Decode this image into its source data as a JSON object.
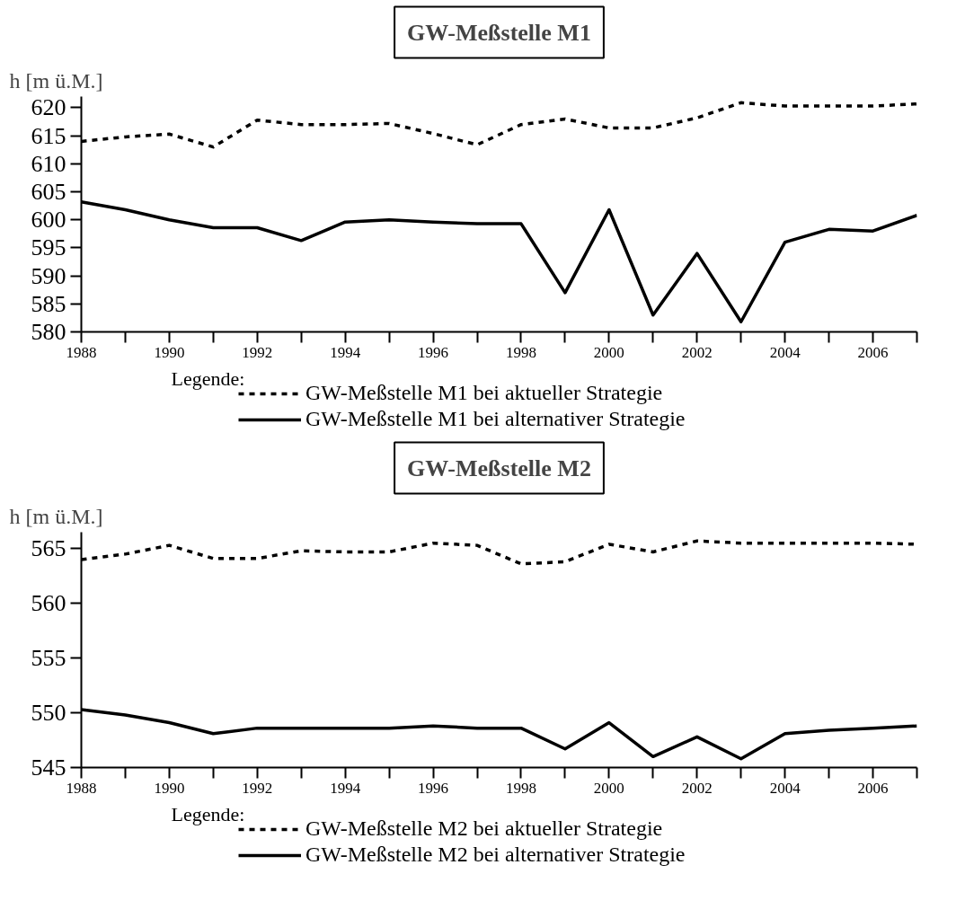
{
  "chart_data": [
    {
      "type": "line",
      "title": "GW-Meßstelle M1",
      "ylabel": "h [m ü.M.]",
      "legend_title": "Legende:",
      "legend": "bottom",
      "grid": false,
      "marker": "none",
      "x": [
        1988,
        1989,
        1990,
        1991,
        1992,
        1993,
        1994,
        1995,
        1996,
        1997,
        1998,
        1999,
        2000,
        2001,
        2002,
        2003,
        2004,
        2005,
        2006,
        2007
      ],
      "xlim": [
        1988,
        2007
      ],
      "xticks": [
        1988,
        {
          "value": 1989,
          "label": null
        },
        1990,
        {
          "value": 1991,
          "label": null
        },
        1992,
        {
          "value": 1993,
          "label": null
        },
        1994,
        {
          "value": 1995,
          "label": null
        },
        1996,
        {
          "value": 1997,
          "label": null
        },
        1998,
        {
          "value": 1999,
          "label": null
        },
        2000,
        {
          "value": 2001,
          "label": null
        },
        2002,
        {
          "value": 2003,
          "label": null
        },
        2004,
        {
          "value": 2005,
          "label": null
        },
        2006,
        {
          "value": 2007,
          "label": null
        }
      ],
      "ylim": [
        580,
        622
      ],
      "yticks": [
        580,
        585,
        590,
        595,
        600,
        605,
        610,
        615,
        620
      ],
      "series": [
        {
          "name": "GW-Meßstelle M1 bei aktueller Strategie",
          "color": "#000000",
          "line_style": "dashed",
          "values": [
            614,
            614.8,
            615.3,
            613,
            617.8,
            617,
            617,
            617.2,
            615.4,
            613.4,
            617,
            618,
            616.4,
            616.4,
            618.2,
            620.9,
            620.3,
            620.3,
            620.3,
            620.7
          ]
        },
        {
          "name": "GW-Meßstelle M1 bei alternativer Strategie",
          "color": "#000000",
          "line_style": "solid",
          "values": [
            603.2,
            601.8,
            600,
            598.6,
            598.6,
            596.3,
            599.6,
            600,
            599.6,
            599.3,
            599.3,
            587,
            601.8,
            583,
            594,
            581.8,
            596,
            598.3,
            598,
            600.8
          ]
        }
      ]
    },
    {
      "type": "line",
      "title": "GW-Meßstelle M2",
      "ylabel": "h [m ü.M.]",
      "legend_title": "Legende:",
      "legend": "bottom",
      "grid": false,
      "marker": "none",
      "x": [
        1988,
        1989,
        1990,
        1991,
        1992,
        1993,
        1994,
        1995,
        1996,
        1997,
        1998,
        1999,
        2000,
        2001,
        2002,
        2003,
        2004,
        2005,
        2006,
        2007
      ],
      "xlim": [
        1988,
        2007
      ],
      "xticks": [
        1988,
        {
          "value": 1989,
          "label": null
        },
        1990,
        {
          "value": 1991,
          "label": null
        },
        1992,
        {
          "value": 1993,
          "label": null
        },
        1994,
        {
          "value": 1995,
          "label": null
        },
        1996,
        {
          "value": 1997,
          "label": null
        },
        1998,
        {
          "value": 1999,
          "label": null
        },
        2000,
        {
          "value": 2001,
          "label": null
        },
        2002,
        {
          "value": 2003,
          "label": null
        },
        2004,
        {
          "value": 2005,
          "label": null
        },
        2006,
        {
          "value": 2007,
          "label": null
        }
      ],
      "ylim": [
        545,
        566.5
      ],
      "yticks": [
        545,
        550,
        555,
        560,
        565
      ],
      "series": [
        {
          "name": "GW-Meßstelle M2 bei aktueller Strategie",
          "color": "#000000",
          "line_style": "dashed",
          "values": [
            564,
            564.5,
            565.3,
            564.1,
            564.1,
            564.8,
            564.7,
            564.7,
            565.5,
            565.3,
            563.6,
            563.8,
            565.4,
            564.7,
            565.7,
            565.5,
            565.5,
            565.5,
            565.5,
            565.4
          ]
        },
        {
          "name": "GW-Meßstelle M2 bei alternativer Strategie",
          "color": "#000000",
          "line_style": "solid",
          "values": [
            550.3,
            549.8,
            549.1,
            548.1,
            548.6,
            548.6,
            548.6,
            548.6,
            548.8,
            548.6,
            548.6,
            546.7,
            549.1,
            546,
            547.8,
            545.8,
            548.1,
            548.4,
            548.6,
            548.8
          ]
        }
      ]
    }
  ]
}
